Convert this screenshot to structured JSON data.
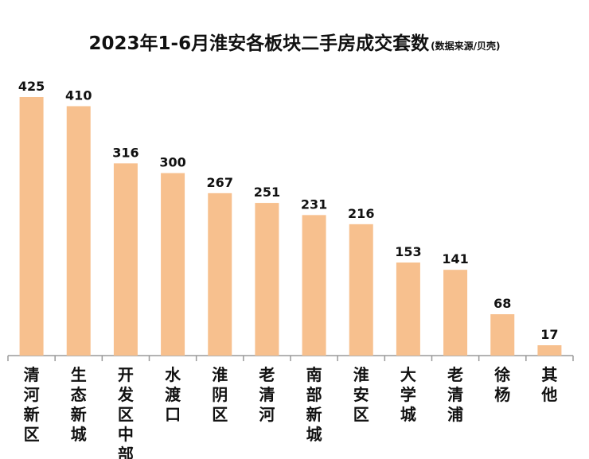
{
  "chart_data": {
    "type": "bar",
    "title": "2023年1-6月淮安各板块二手房成交套数",
    "subtitle": "(数据来源/贝壳)",
    "categories": [
      "清河新区",
      "生态新城",
      "开发区中部",
      "水渡口",
      "淮阴区",
      "老清河",
      "南部新城",
      "淮安区",
      "大学城",
      "老清浦",
      "徐杨",
      "其他"
    ],
    "values": [
      425,
      410,
      316,
      300,
      267,
      251,
      231,
      216,
      153,
      141,
      68,
      17
    ],
    "xlabel": "",
    "ylabel": "",
    "ylim": [
      0,
      425
    ],
    "grid": false,
    "legend": "none",
    "data_labels": true,
    "colors": {
      "bar": "#F7C08E",
      "axis": "#9A9A9A",
      "text": "#111111"
    }
  }
}
